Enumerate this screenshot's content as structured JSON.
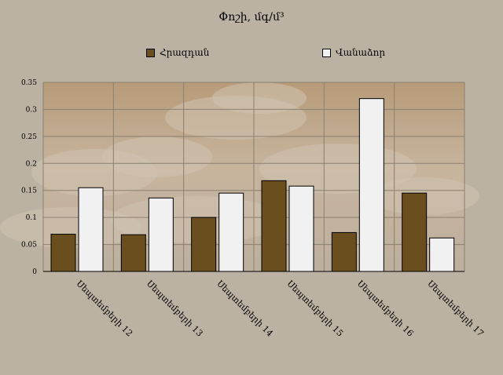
{
  "chart_data": {
    "type": "bar",
    "title": "Փոշի, մգ/մ³",
    "categories": [
      "Սեպտեմբերի 12",
      "Սեպտեմբերի 13",
      "Սեպտեմբերի 14",
      "Սեպտեմբերի 15",
      "Սեպտեմբերի 16",
      "Սեպտեմբերի 17"
    ],
    "series": [
      {
        "name": "Հրազդան",
        "values": [
          0.069,
          0.068,
          0.1,
          0.168,
          0.072,
          0.145
        ],
        "color": "#6b4e1e"
      },
      {
        "name": "Վանաձոր",
        "values": [
          0.155,
          0.136,
          0.145,
          0.158,
          0.32,
          0.062
        ],
        "color": "#f1f1f1"
      }
    ],
    "yticks": [
      "0",
      "0.05",
      "0.1",
      "0.15",
      "0.2",
      "0.25",
      "0.3",
      "0.35"
    ],
    "ylim": [
      0,
      0.35
    ],
    "xlabel": "",
    "ylabel": "",
    "grid": true,
    "legend_position": "top",
    "background_color": "#bcb2a3",
    "plot_background": "cloudy-sky"
  }
}
